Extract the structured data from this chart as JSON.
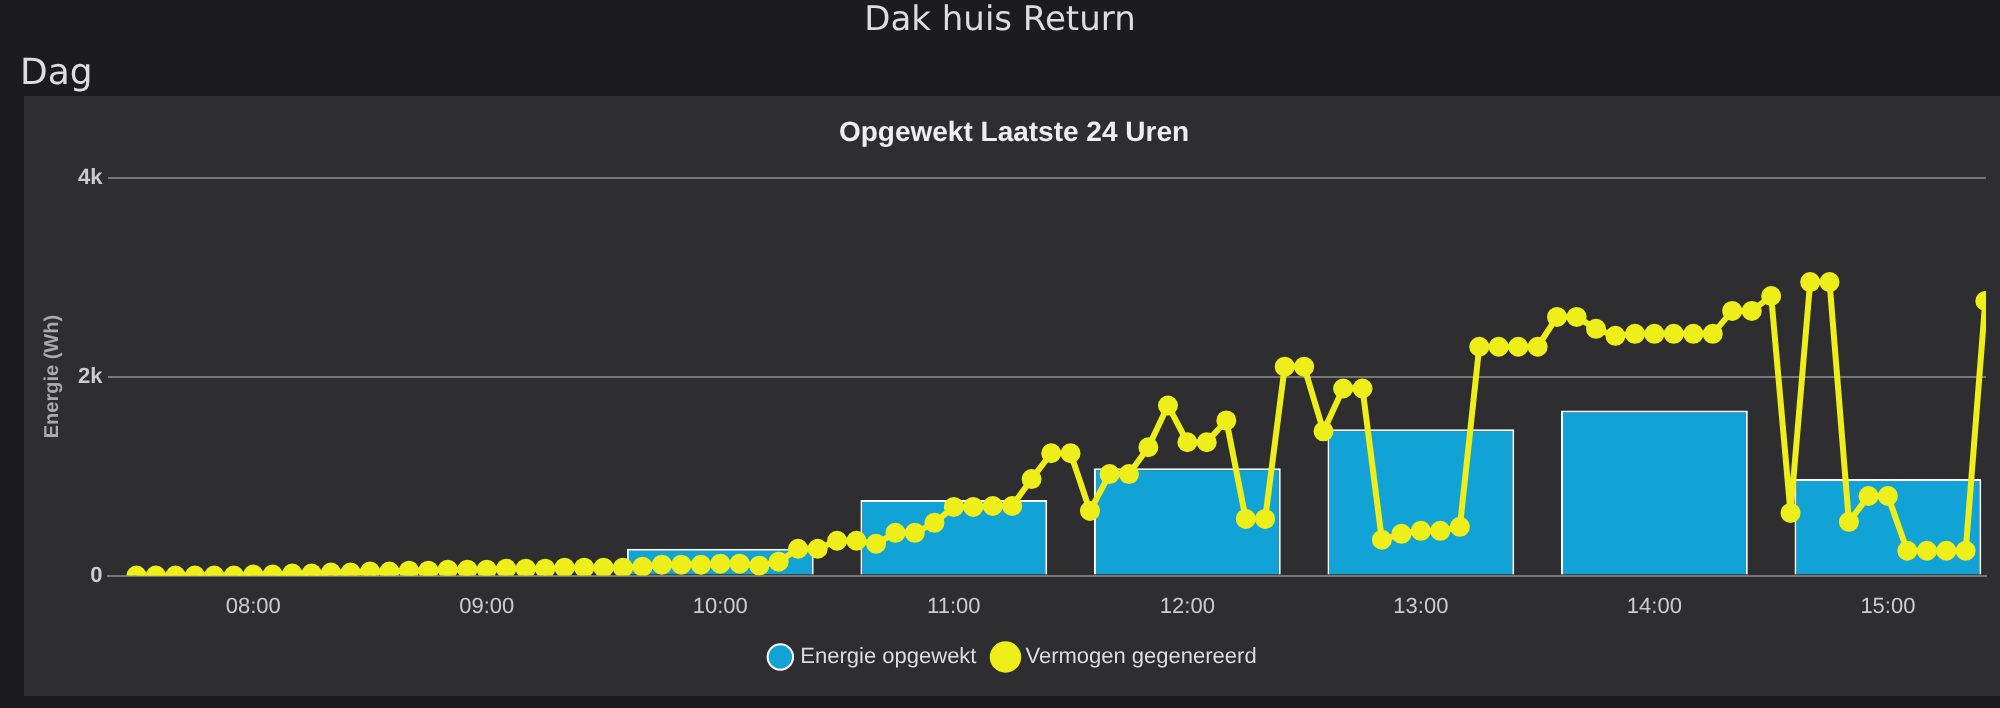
{
  "chart_data": {
    "type": "bar",
    "title": "Opgewekt Laatste 24 Uren",
    "ylabel": "Energie (Wh)",
    "annotations": [
      "Dak huis Return",
      "Dag"
    ],
    "xlim": [
      7.38,
      15.42
    ],
    "xticks": [
      {
        "value": 8,
        "label": "08:00"
      },
      {
        "value": 9,
        "label": "09:00"
      },
      {
        "value": 10,
        "label": "10:00"
      },
      {
        "value": 11,
        "label": "11:00"
      },
      {
        "value": 12,
        "label": "12:00"
      },
      {
        "value": 13,
        "label": "13:00"
      },
      {
        "value": 14,
        "label": "14:00"
      },
      {
        "value": 15,
        "label": "15:00"
      }
    ],
    "ylim": [
      0,
      4000
    ],
    "yticks": [
      {
        "value": 0,
        "label": "0"
      },
      {
        "value": 2000,
        "label": "2k"
      },
      {
        "value": 4000,
        "label": "4k"
      }
    ],
    "grid": "y",
    "legend": "bottom",
    "marker": "circle",
    "line_style": "solid",
    "series": [
      {
        "name": "Energie opgewekt",
        "color": "#12a3d6",
        "x": [
          10,
          11,
          12,
          13,
          14,
          15
        ],
        "values": [
          270,
          760,
          1080,
          1470,
          1660,
          970
        ]
      },
      {
        "name": "Vermogen gegenereerd",
        "type": "line",
        "color": "#eeee1a",
        "x": [
          7.5,
          7.583,
          7.667,
          7.75,
          7.833,
          7.917,
          8,
          8.083,
          8.167,
          8.25,
          8.333,
          8.417,
          8.5,
          8.583,
          8.667,
          8.75,
          8.833,
          8.917,
          9,
          9.083,
          9.167,
          9.25,
          9.333,
          9.417,
          9.5,
          9.583,
          9.667,
          9.75,
          9.833,
          9.917,
          10,
          10.083,
          10.167,
          10.25,
          10.333,
          10.417,
          10.5,
          10.583,
          10.667,
          10.75,
          10.833,
          10.917,
          11,
          11.083,
          11.167,
          11.25,
          11.333,
          11.417,
          11.5,
          11.583,
          11.667,
          11.75,
          11.833,
          11.917,
          12,
          12.083,
          12.167,
          12.25,
          12.333,
          12.417,
          12.5,
          12.583,
          12.667,
          12.75,
          12.833,
          12.917,
          13,
          13.083,
          13.167,
          13.25,
          13.333,
          13.417,
          13.5,
          13.583,
          13.667,
          13.75,
          13.833,
          13.917,
          14,
          14.083,
          14.167,
          14.25,
          14.333,
          14.417,
          14.5,
          14.583,
          14.667,
          14.75,
          14.833,
          14.917,
          15,
          15.083,
          15.167,
          15.25,
          15.333,
          15.417
        ],
        "values": [
          0,
          0,
          0,
          0,
          0,
          0,
          10,
          10,
          20,
          20,
          30,
          30,
          40,
          40,
          50,
          50,
          60,
          60,
          60,
          70,
          70,
          70,
          80,
          80,
          80,
          80,
          90,
          110,
          110,
          110,
          120,
          120,
          100,
          140,
          270,
          270,
          350,
          350,
          320,
          430,
          430,
          530,
          690,
          690,
          700,
          700,
          970,
          1230,
          1230,
          650,
          1020,
          1020,
          1290,
          1710,
          1340,
          1340,
          1560,
          570,
          570,
          2100,
          2100,
          1450,
          1880,
          1880,
          360,
          420,
          450,
          450,
          490,
          2300,
          2300,
          2300,
          2300,
          2600,
          2600,
          2480,
          2410,
          2430,
          2430,
          2430,
          2430,
          2430,
          2660,
          2660,
          2810,
          630,
          2950,
          2950,
          540,
          800,
          800,
          250,
          250,
          250,
          250,
          2760
        ]
      }
    ]
  }
}
